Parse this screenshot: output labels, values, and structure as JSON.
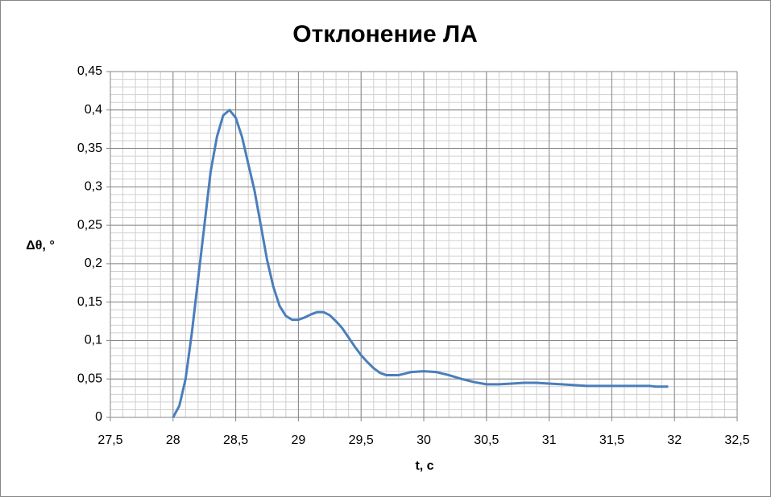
{
  "chart_data": {
    "type": "line",
    "title": "Отклонение ЛА",
    "x_label": "t, с",
    "y_label": "Δθ, °",
    "x": [
      28.0,
      28.05,
      28.1,
      28.15,
      28.2,
      28.25,
      28.3,
      28.35,
      28.4,
      28.45,
      28.5,
      28.55,
      28.6,
      28.65,
      28.7,
      28.75,
      28.8,
      28.85,
      28.9,
      28.95,
      29.0,
      29.05,
      29.1,
      29.15,
      29.2,
      29.25,
      29.3,
      29.35,
      29.4,
      29.45,
      29.5,
      29.55,
      29.6,
      29.65,
      29.7,
      29.8,
      29.85,
      29.9,
      30.0,
      30.1,
      30.2,
      30.3,
      30.4,
      30.5,
      30.6,
      30.7,
      30.8,
      30.9,
      31.0,
      31.1,
      31.2,
      31.3,
      31.5,
      31.7,
      31.8,
      31.85,
      31.95
    ],
    "series": [
      {
        "name": "Δθ",
        "color": "#4a7ebb",
        "values": [
          0,
          0.015,
          0.05,
          0.11,
          0.18,
          0.25,
          0.32,
          0.365,
          0.393,
          0.4,
          0.39,
          0.365,
          0.33,
          0.295,
          0.25,
          0.205,
          0.17,
          0.145,
          0.132,
          0.127,
          0.127,
          0.13,
          0.134,
          0.137,
          0.137,
          0.133,
          0.125,
          0.116,
          0.104,
          0.092,
          0.081,
          0.072,
          0.064,
          0.058,
          0.055,
          0.055,
          0.057,
          0.059,
          0.06,
          0.059,
          0.055,
          0.05,
          0.046,
          0.043,
          0.043,
          0.044,
          0.045,
          0.045,
          0.044,
          0.043,
          0.042,
          0.041,
          0.041,
          0.041,
          0.041,
          0.04,
          0.04
        ]
      }
    ],
    "xlim": [
      27.5,
      32.5
    ],
    "xticks": [
      {
        "value": 27.5,
        "label": "27,5"
      },
      28,
      {
        "value": 28.5,
        "label": "28,5"
      },
      29,
      {
        "value": 29.5,
        "label": "29,5"
      },
      30,
      {
        "value": 30.5,
        "label": "30,5"
      },
      31,
      {
        "value": 31.5,
        "label": "31,5"
      },
      32,
      {
        "value": 32.5,
        "label": "32,5"
      }
    ],
    "ylim": [
      0,
      0.45
    ],
    "yticks": [
      0,
      {
        "value": 0.05,
        "label": "0,05"
      },
      {
        "value": 0.1,
        "label": "0,1"
      },
      {
        "value": 0.15,
        "label": "0,15"
      },
      {
        "value": 0.2,
        "label": "0,2"
      },
      {
        "value": 0.25,
        "label": "0,25"
      },
      {
        "value": 0.3,
        "label": "0,3"
      },
      {
        "value": 0.35,
        "label": "0,35"
      },
      {
        "value": 0.4,
        "label": "0,4"
      },
      {
        "value": 0.45,
        "label": "0,45"
      }
    ],
    "grid": true,
    "minor_grid": true
  }
}
